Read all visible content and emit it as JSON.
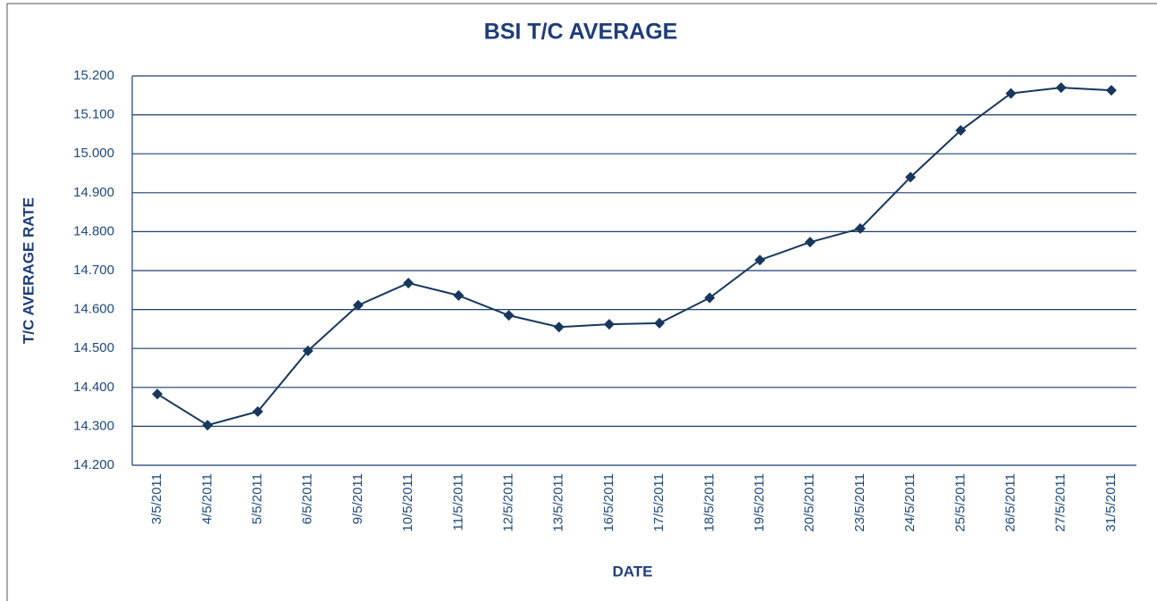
{
  "chart_data": {
    "type": "line",
    "title": "BSI T/C AVERAGE",
    "x_label": "DATE",
    "y_label": "T/C AVERAGE RATE",
    "categories": [
      "3/5/2011",
      "4/5/2011",
      "5/5/2011",
      "6/5/2011",
      "9/5/2011",
      "10/5/2011",
      "11/5/2011",
      "12/5/2011",
      "13/5/2011",
      "16/5/2011",
      "17/5/2011",
      "18/5/2011",
      "19/5/2011",
      "20/5/2011",
      "23/5/2011",
      "24/5/2011",
      "25/5/2011",
      "26/5/2011",
      "27/5/2011",
      "31/5/2011"
    ],
    "values": [
      14383,
      14303,
      14338,
      14494,
      14611,
      14668,
      14636,
      14585,
      14555,
      14562,
      14565,
      14630,
      14727,
      14773,
      14808,
      14940,
      15060,
      15155,
      15170,
      15163
    ],
    "color": "#17375e",
    "ylim": [
      14200,
      15200
    ],
    "yticks": [
      {
        "value": 14200,
        "label": "14.200"
      },
      {
        "value": 14300,
        "label": "14.300"
      },
      {
        "value": 14400,
        "label": "14.400"
      },
      {
        "value": 14500,
        "label": "14.500"
      },
      {
        "value": 14600,
        "label": "14.600"
      },
      {
        "value": 14700,
        "label": "14.700"
      },
      {
        "value": 14800,
        "label": "14.800"
      },
      {
        "value": 14900,
        "label": "14.900"
      },
      {
        "value": 15000,
        "label": "15.000"
      },
      {
        "value": 15100,
        "label": "15.100"
      },
      {
        "value": 15200,
        "label": "15.200"
      }
    ],
    "grid": true
  }
}
